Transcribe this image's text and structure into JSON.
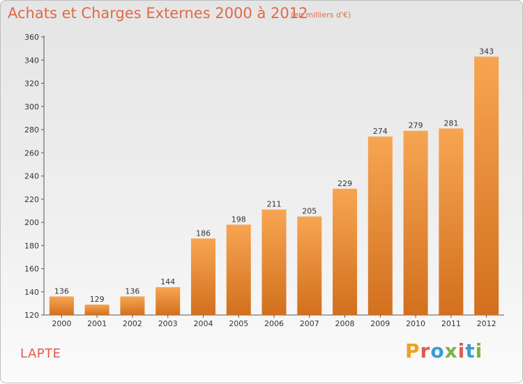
{
  "header": {
    "title": "Achats et Charges Externes 2000 à 2012",
    "unit": "(en milliers d'€)"
  },
  "footer": {
    "city": "LAPTE",
    "brand": "Proxiti",
    "brand_colors": [
      "#f0a020",
      "#e05a4f",
      "#3b9bd8",
      "#7cb342",
      "#e05a4f",
      "#3b9bd8",
      "#7cb342"
    ]
  },
  "chart_data": {
    "type": "bar",
    "categories": [
      "2000",
      "2001",
      "2002",
      "2003",
      "2004",
      "2005",
      "2006",
      "2007",
      "2008",
      "2009",
      "2010",
      "2011",
      "2012"
    ],
    "values": [
      136,
      129,
      136,
      144,
      186,
      198,
      211,
      205,
      229,
      274,
      279,
      281,
      343
    ],
    "ylim": [
      120,
      360
    ],
    "yticks": [
      120,
      140,
      160,
      180,
      200,
      220,
      240,
      260,
      280,
      300,
      320,
      340,
      360
    ],
    "grid": false,
    "bar_color_top": "#f7a552",
    "bar_color_bottom": "#d2701e",
    "xlabel": "",
    "ylabel": ""
  }
}
